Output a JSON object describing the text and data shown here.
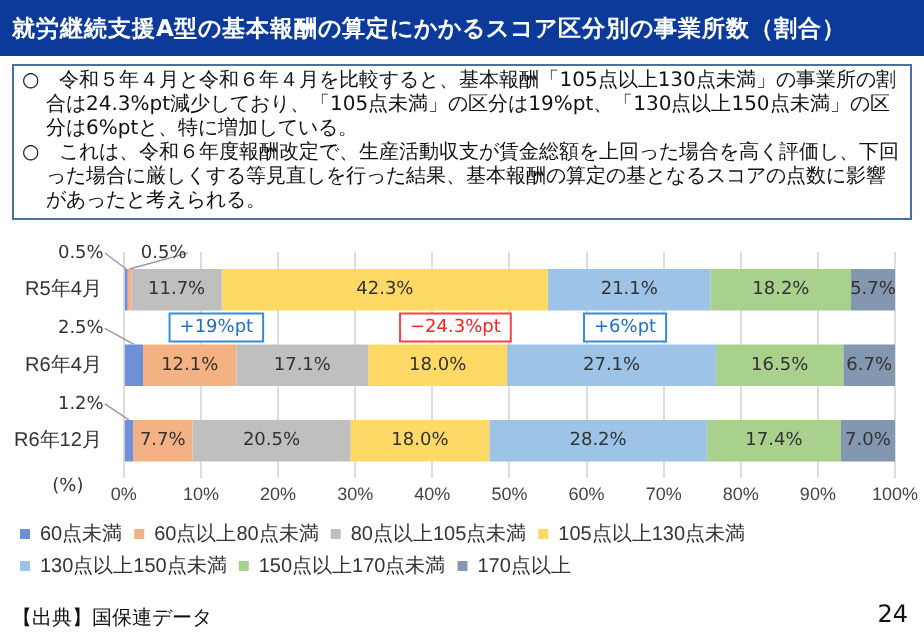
{
  "chart_data": {
    "type": "bar",
    "orientation": "horizontal",
    "stacked": true,
    "title": "就労継続支援A型の基本報酬の算定にかかるスコア区分別の事業所数（割合）",
    "categories": [
      "R5年4月",
      "R6年4月",
      "R6年12月"
    ],
    "series": [
      {
        "name": "60点未満",
        "color": "#6f8fd8",
        "values": [
          0.5,
          2.5,
          1.2
        ],
        "value_labels": [
          "0.5%",
          "2.5%",
          "1.2%"
        ]
      },
      {
        "name": "60点以上80点未満",
        "color": "#f4b183",
        "values": [
          0.5,
          12.1,
          7.7
        ],
        "value_labels": [
          "0.5%",
          "12.1%",
          "7.7%"
        ]
      },
      {
        "name": "80点以上105点未満",
        "color": "#bfbfbf",
        "values": [
          11.7,
          17.1,
          20.5
        ],
        "value_labels": [
          "11.7%",
          "17.1%",
          "20.5%"
        ]
      },
      {
        "name": "105点以上130点未満",
        "color": "#ffd966",
        "values": [
          42.3,
          18.0,
          18.0
        ],
        "value_labels": [
          "42.3%",
          "18.0%",
          "18.0%"
        ]
      },
      {
        "name": "130点以上150点未満",
        "color": "#9dc3e6",
        "values": [
          21.1,
          27.1,
          28.2
        ],
        "value_labels": [
          "21.1%",
          "27.1%",
          "28.2%"
        ]
      },
      {
        "name": "150点以上170点未満",
        "color": "#a9d18e",
        "values": [
          18.2,
          16.5,
          17.4
        ],
        "value_labels": [
          "18.2%",
          "16.5%",
          "17.4%"
        ]
      },
      {
        "name": "170点以上",
        "color": "#8497b0",
        "values": [
          5.7,
          6.7,
          7.0
        ],
        "value_labels": [
          "5.7%",
          "6.7%",
          "7.0%"
        ]
      }
    ],
    "xlabel": "(%)",
    "xlim": [
      0,
      100
    ],
    "xticks": [
      {
        "value": 0,
        "label": "0%"
      },
      {
        "value": 10,
        "label": "10%"
      },
      {
        "value": 20,
        "label": "20%"
      },
      {
        "value": 30,
        "label": "30%"
      },
      {
        "value": 40,
        "label": "40%"
      },
      {
        "value": 50,
        "label": "50%"
      },
      {
        "value": 60,
        "label": "60%"
      },
      {
        "value": 70,
        "label": "70%"
      },
      {
        "value": 80,
        "label": "80%"
      },
      {
        "value": 90,
        "label": "90%"
      },
      {
        "value": 100,
        "label": "100%"
      }
    ],
    "grid": "x",
    "legend": "bottom",
    "annotations": [
      "○　令和５年４月と令和６年４月を比較すると、基本報酬「105点以上130点未満」の事業所の割合は24.3%pt減少しており、「105点未満」の区分は19%pt、「130点以上150点未満」の区分は6%ptと、特に増加している。",
      "○　これは、令和６年度報酬改定で、生産活動収支が賃金総額を上回った場合を高く評価し、下回った場合に厳しくする等見直しを行った結果、基本報酬の算定の基となるスコアの点数に影響があったと考えられる。",
      "+19%pt",
      "−24.3%pt",
      "+6%pt",
      "【出典】国保連データ",
      "24"
    ]
  }
}
